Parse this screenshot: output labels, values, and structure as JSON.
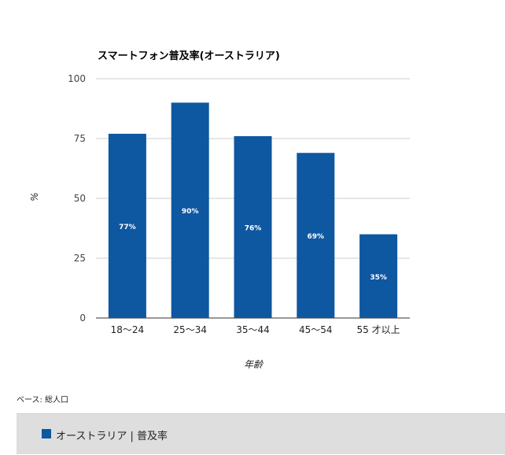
{
  "chart_data": {
    "type": "bar",
    "title": "スマートフォン普及率(オーストラリア)",
    "xlabel": "年齢",
    "ylabel": "%",
    "ylim": [
      0,
      100
    ],
    "yticks": [
      0,
      25,
      50,
      75,
      100
    ],
    "categories": [
      "18〜24",
      "25〜34",
      "35〜44",
      "45〜54",
      "55 才以上"
    ],
    "series": [
      {
        "name": "オーストラリア | 普及率",
        "values": [
          77,
          90,
          76,
          69,
          35
        ],
        "labels": [
          "77%",
          "90%",
          "76%",
          "69%",
          "35%"
        ]
      }
    ],
    "grid": true,
    "legend": "bottom",
    "bar_color": "#0e57a1"
  },
  "footer": {
    "base_note": "ベース: 総人口"
  }
}
